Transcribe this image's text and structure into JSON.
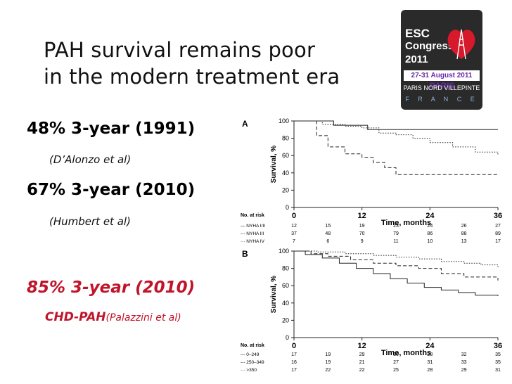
{
  "title": {
    "line1": "PAH survival remains poor",
    "line2": "in the modern treatment era"
  },
  "logo": {
    "line1": "ESC",
    "line2": "Congress",
    "line3": "2011",
    "dates": "27-31 August 2011",
    "city": "PARIS",
    "venue": "PARIS NORD VILLEPINTE",
    "country": "F R A N C E"
  },
  "stats": [
    {
      "text": "48% 3-year (1991)",
      "citation": "(D’Alonzo et al)"
    },
    {
      "text": "67% 3-year (2010)",
      "citation": "(Humbert et al)"
    },
    {
      "text": "85% 3-year (2010)",
      "label": "CHD-PAH",
      "citation": "(Palazzini et al)"
    }
  ],
  "colors": {
    "accent_red": "#c0142b",
    "text": "#111111"
  },
  "chart_data": [
    {
      "type": "line",
      "panel_label": "A",
      "xlabel": "Time, months",
      "ylabel": "Survival, %",
      "x_ticks": [
        0,
        12,
        24,
        36
      ],
      "y_ticks": [
        0,
        20,
        40,
        60,
        80,
        100
      ],
      "xlim": [
        0,
        36
      ],
      "ylim": [
        0,
        100
      ],
      "series": [
        {
          "name": "NYHA I/II",
          "style": "solid",
          "points": [
            [
              0,
              100
            ],
            [
              6,
              100
            ],
            [
              7,
              100
            ],
            [
              7,
              95
            ],
            [
              12,
              95
            ],
            [
              13,
              90
            ],
            [
              36,
              90
            ]
          ]
        },
        {
          "name": "NYHA III",
          "style": "dotted",
          "points": [
            [
              0,
              100
            ],
            [
              5,
              100
            ],
            [
              5,
              96
            ],
            [
              9,
              94
            ],
            [
              12,
              92
            ],
            [
              15,
              86
            ],
            [
              18,
              84
            ],
            [
              21,
              80
            ],
            [
              24,
              75
            ],
            [
              28,
              70
            ],
            [
              32,
              64
            ],
            [
              36,
              60
            ]
          ]
        },
        {
          "name": "NYHA IV",
          "style": "dashed",
          "points": [
            [
              0,
              100
            ],
            [
              4,
              100
            ],
            [
              4,
              83
            ],
            [
              6,
              70
            ],
            [
              9,
              62
            ],
            [
              12,
              58
            ],
            [
              14,
              52
            ],
            [
              16,
              46
            ],
            [
              18,
              38
            ],
            [
              36,
              38
            ]
          ]
        }
      ],
      "risk_table": {
        "title": "No. at risk",
        "rows": [
          {
            "label": "— NYHA I/II",
            "values": [
              "12",
              "15",
              "19",
              "23",
              "24",
              "26",
              "27"
            ]
          },
          {
            "label": "--- NYHA III",
            "values": [
              "37",
              "48",
              "70",
              "79",
              "86",
              "88",
              "89"
            ]
          },
          {
            "label": "··· NYHA IV",
            "values": [
              "7",
              "6",
              "9",
              "11",
              "10",
              "13",
              "17"
            ]
          }
        ]
      }
    },
    {
      "type": "line",
      "panel_label": "B",
      "xlabel": "Time, months",
      "ylabel": "Survival, %",
      "x_ticks": [
        0,
        12,
        24,
        36
      ],
      "y_ticks": [
        0,
        20,
        40,
        60,
        80,
        100
      ],
      "xlim": [
        0,
        36
      ],
      "ylim": [
        0,
        100
      ],
      "series": [
        {
          "name": "0–249",
          "style": "solid",
          "points": [
            [
              0,
              100
            ],
            [
              2,
              96
            ],
            [
              5,
              92
            ],
            [
              8,
              86
            ],
            [
              11,
              80
            ],
            [
              14,
              74
            ],
            [
              17,
              68
            ],
            [
              20,
              63
            ],
            [
              23,
              58
            ],
            [
              26,
              55
            ],
            [
              29,
              52
            ],
            [
              32,
              49
            ],
            [
              36,
              48
            ]
          ]
        },
        {
          "name": "250–349",
          "style": "dashed",
          "points": [
            [
              0,
              100
            ],
            [
              3,
              97
            ],
            [
              6,
              94
            ],
            [
              10,
              90
            ],
            [
              14,
              86
            ],
            [
              18,
              83
            ],
            [
              22,
              80
            ],
            [
              26,
              74
            ],
            [
              30,
              70
            ],
            [
              36,
              66
            ]
          ]
        },
        {
          "name": ">350",
          "style": "dotted",
          "points": [
            [
              0,
              100
            ],
            [
              4,
              99
            ],
            [
              9,
              97
            ],
            [
              14,
              95
            ],
            [
              18,
              93
            ],
            [
              22,
              91
            ],
            [
              26,
              88
            ],
            [
              30,
              86
            ],
            [
              33,
              84
            ],
            [
              36,
              80
            ]
          ]
        }
      ],
      "risk_table": {
        "title": "No. at risk",
        "rows": [
          {
            "label": "— 0–249",
            "values": [
              "17",
              "19",
              "29",
              "30",
              "28",
              "32",
              "35"
            ]
          },
          {
            "label": "--- 250–349",
            "values": [
              "16",
              "19",
              "21",
              "27",
              "31",
              "33",
              "35"
            ]
          },
          {
            "label": "··· >350",
            "values": [
              "17",
              "22",
              "22",
              "25",
              "28",
              "29",
              "31"
            ]
          }
        ]
      }
    }
  ]
}
